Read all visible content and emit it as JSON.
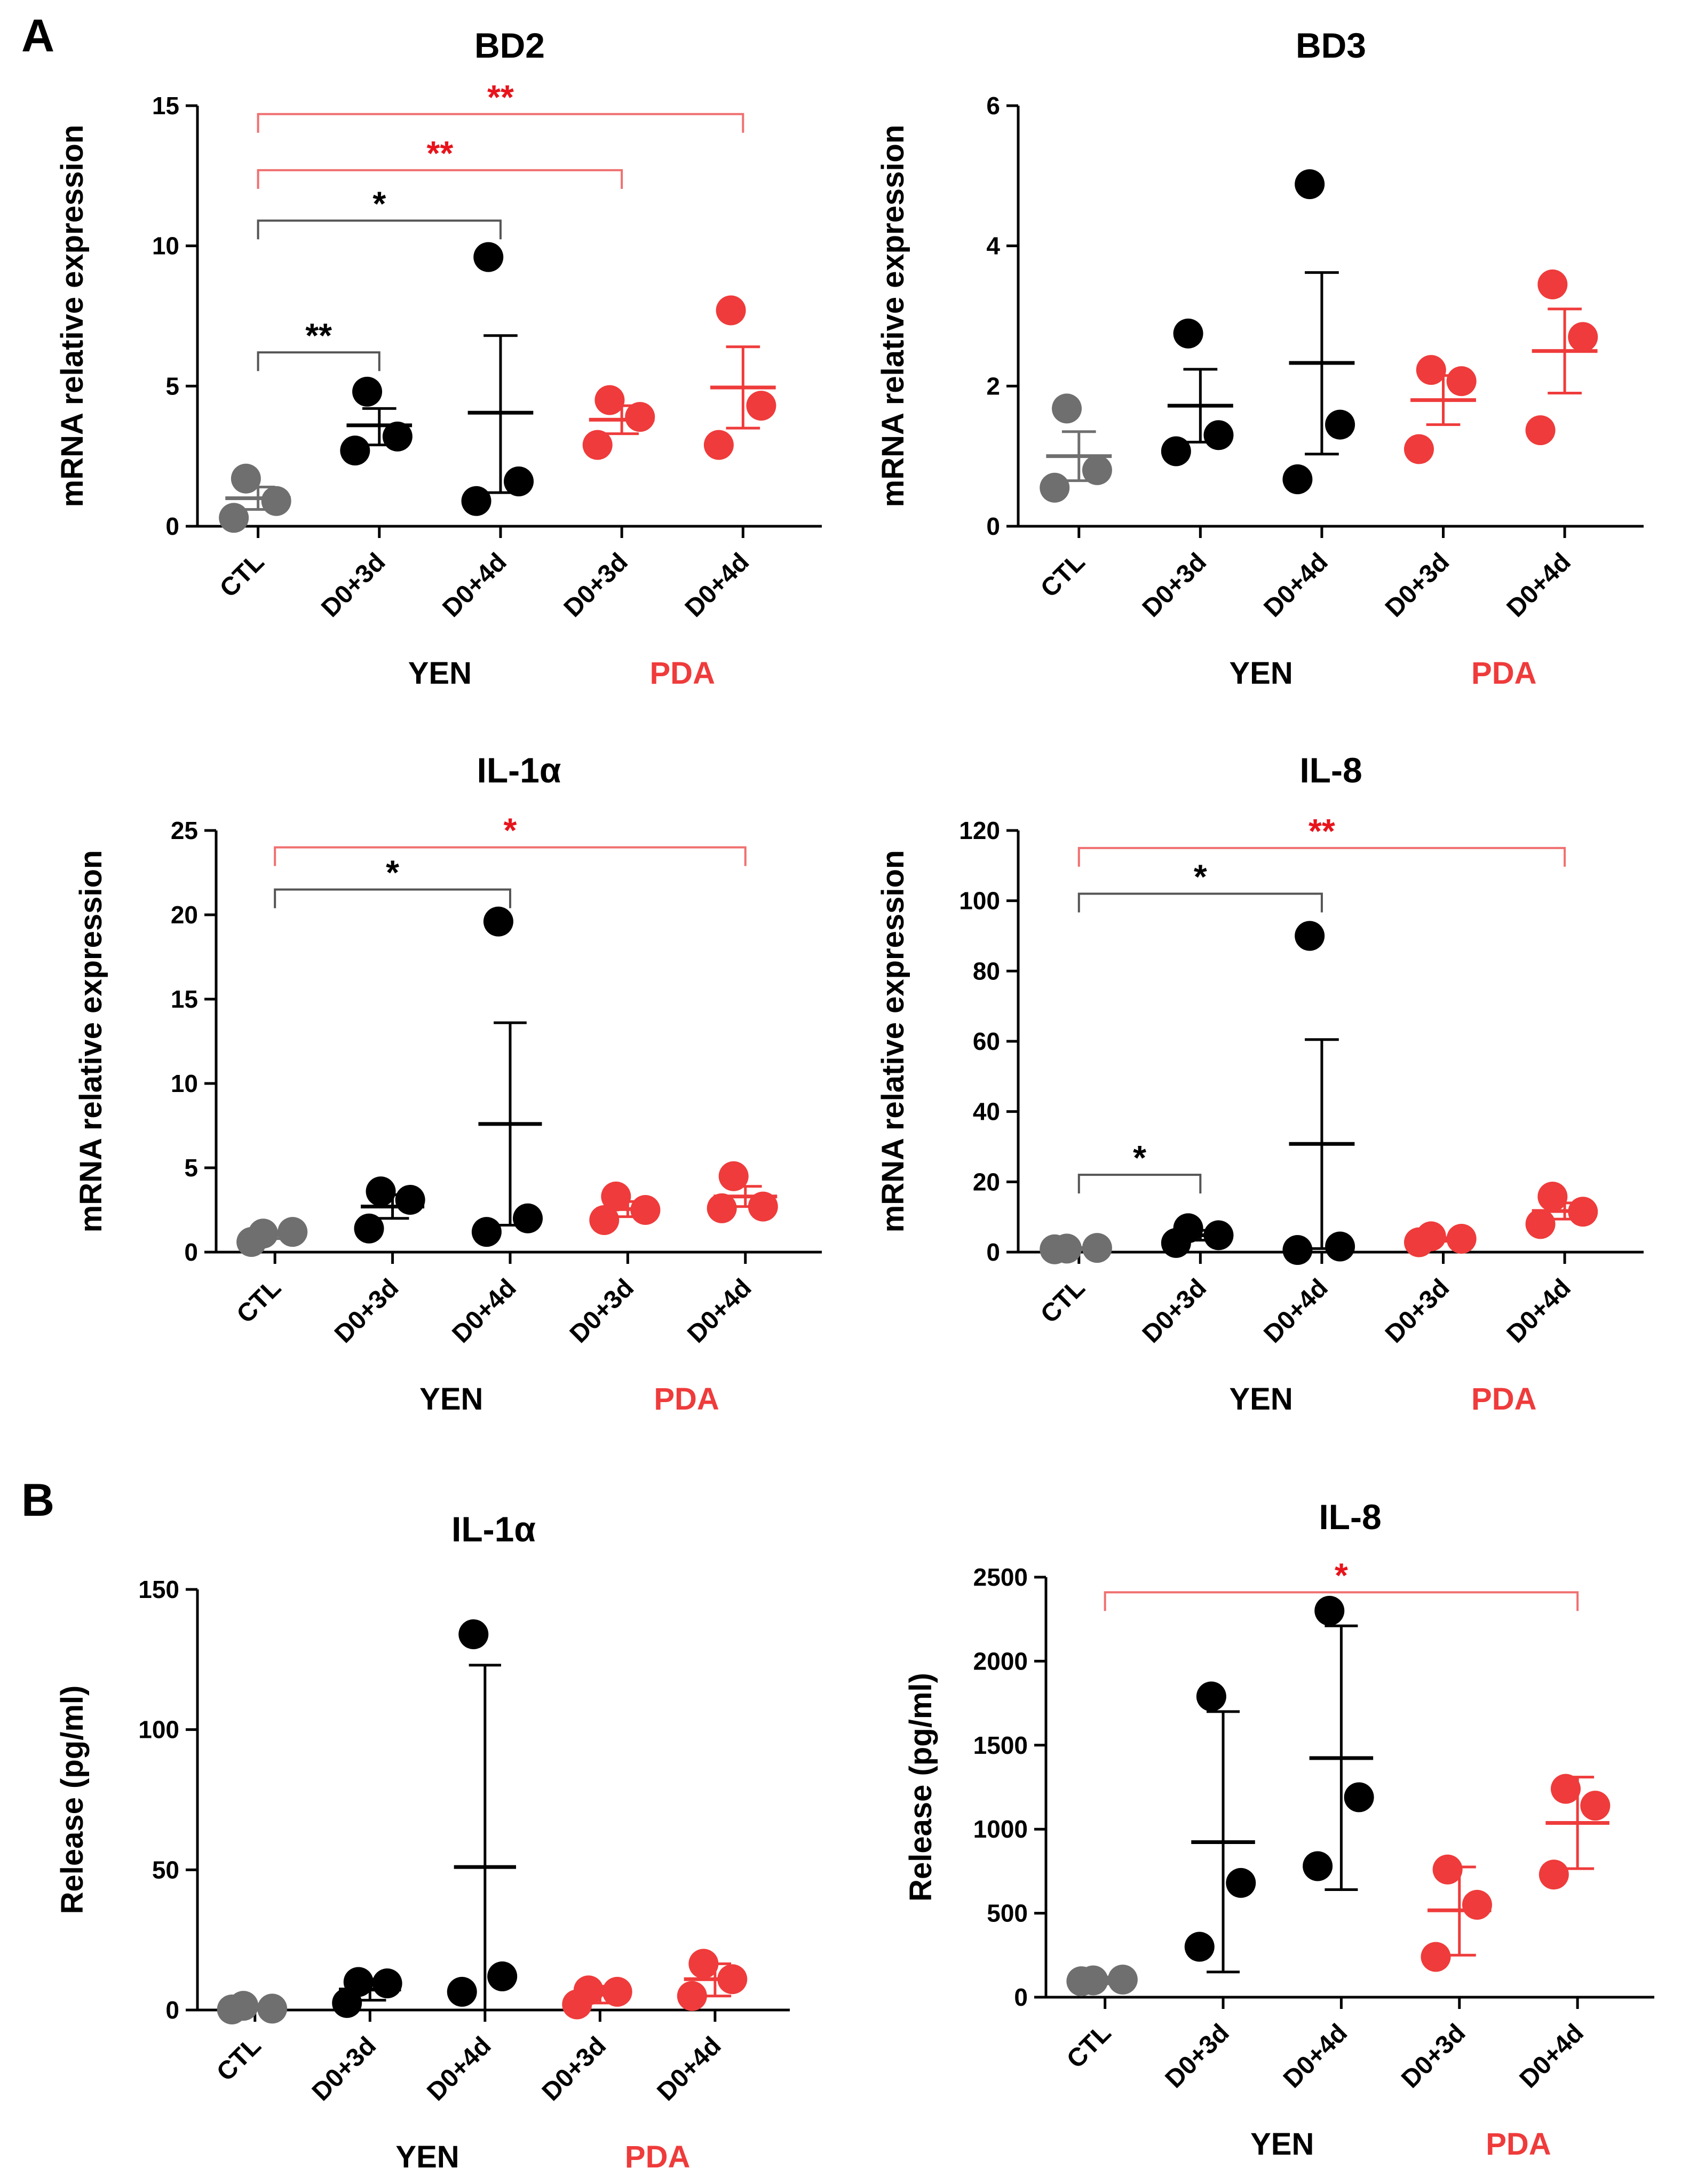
{
  "panel_labels": [
    "A",
    "B"
  ],
  "colors": {
    "ctl": "#6f6f6f",
    "yen": "#000000",
    "pda": "#ef3b3b",
    "sig_red": "#e8141c",
    "bracket_red": "#f07070"
  },
  "chart_data": [
    {
      "type": "scatter",
      "title": "BD2",
      "ylabel": "mRNA relative expression",
      "ylim": [
        0,
        15
      ],
      "yticks": [
        "0",
        "5",
        "10",
        "15"
      ],
      "categories": [
        "CTL",
        "D0+3d",
        "D0+4d",
        "D0+3d",
        "D0+4d"
      ],
      "groups": [
        {
          "label": "YEN",
          "color": "#000000"
        },
        {
          "label": "PDA",
          "color": "#ef3b3b"
        }
      ],
      "series": [
        {
          "name": "CTL",
          "color": "#6f6f6f",
          "points": [
            1.7,
            0.3,
            0.9
          ],
          "mean": 1.0,
          "err": [
            0.6,
            1.4
          ]
        },
        {
          "name": "YEN D0+3d",
          "color": "#000000",
          "points": [
            4.8,
            2.7,
            3.2
          ],
          "mean": 3.6,
          "err": [
            2.9,
            4.2
          ]
        },
        {
          "name": "YEN D0+4d",
          "color": "#000000",
          "points": [
            9.6,
            0.9,
            1.6
          ],
          "mean": 4.05,
          "err": [
            1.2,
            6.8
          ]
        },
        {
          "name": "PDA D0+3d",
          "color": "#ef3b3b",
          "points": [
            4.5,
            2.9,
            3.9
          ],
          "mean": 3.8,
          "err": [
            3.3,
            4.3
          ]
        },
        {
          "name": "PDA D0+4d",
          "color": "#ef3b3b",
          "points": [
            7.7,
            2.9,
            4.3
          ],
          "mean": 4.95,
          "err": [
            3.5,
            6.4
          ]
        }
      ],
      "significance": [
        {
          "from": 0,
          "to": 1,
          "label": "**",
          "y": 6.2,
          "color": "#000000"
        },
        {
          "from": 0,
          "to": 2,
          "label": "*",
          "y": 10.9,
          "color": "#000000"
        },
        {
          "from": 0,
          "to": 3,
          "label": "**",
          "y": 12.7,
          "color": "#e8141c"
        },
        {
          "from": 0,
          "to": 4,
          "label": "**",
          "y": 14.7,
          "color": "#e8141c"
        }
      ]
    },
    {
      "type": "scatter",
      "title": "BD3",
      "ylabel": "mRNA relative expression",
      "ylim": [
        0,
        6
      ],
      "yticks": [
        "0",
        "2",
        "4",
        "6"
      ],
      "categories": [
        "CTL",
        "D0+3d",
        "D0+4d",
        "D0+3d",
        "D0+4d"
      ],
      "groups": [
        {
          "label": "YEN",
          "color": "#000000"
        },
        {
          "label": "PDA",
          "color": "#ef3b3b"
        }
      ],
      "series": [
        {
          "name": "CTL",
          "color": "#6f6f6f",
          "points": [
            1.68,
            0.55,
            0.8
          ],
          "mean": 1.0,
          "err": [
            0.65,
            1.35
          ]
        },
        {
          "name": "YEN D0+3d",
          "color": "#000000",
          "points": [
            2.75,
            1.07,
            1.3
          ],
          "mean": 1.72,
          "err": [
            1.2,
            2.24
          ]
        },
        {
          "name": "YEN D0+4d",
          "color": "#000000",
          "points": [
            4.88,
            0.67,
            1.45
          ],
          "mean": 2.33,
          "err": [
            1.03,
            3.62
          ]
        },
        {
          "name": "PDA D0+3d",
          "color": "#ef3b3b",
          "points": [
            2.23,
            1.1,
            2.07
          ],
          "mean": 1.8,
          "err": [
            1.45,
            2.15
          ]
        },
        {
          "name": "PDA D0+4d",
          "color": "#ef3b3b",
          "points": [
            3.45,
            1.37,
            2.7
          ],
          "mean": 2.5,
          "err": [
            1.9,
            3.1
          ]
        }
      ],
      "significance": []
    },
    {
      "type": "scatter",
      "title": "IL-1α",
      "ylabel": "mRNA relative expression",
      "ylim": [
        0,
        25
      ],
      "yticks": [
        "0",
        "5",
        "10",
        "15",
        "20",
        "25"
      ],
      "categories": [
        "CTL",
        "D0+3d",
        "D0+4d",
        "D0+3d",
        "D0+4d"
      ],
      "groups": [
        {
          "label": "YEN",
          "color": "#000000"
        },
        {
          "label": "PDA",
          "color": "#ef3b3b"
        }
      ],
      "series": [
        {
          "name": "CTL",
          "color": "#6f6f6f",
          "points": [
            1.1,
            0.6,
            1.2
          ],
          "mean": 1.0,
          "err": [
            0.8,
            1.2
          ]
        },
        {
          "name": "YEN D0+3d",
          "color": "#000000",
          "points": [
            3.6,
            1.4,
            3.1
          ],
          "mean": 2.7,
          "err": [
            2.0,
            3.4
          ]
        },
        {
          "name": "YEN D0+4d",
          "color": "#000000",
          "points": [
            19.6,
            1.2,
            2.0
          ],
          "mean": 7.6,
          "err": [
            1.6,
            13.6
          ]
        },
        {
          "name": "PDA D0+3d",
          "color": "#ef3b3b",
          "points": [
            3.3,
            1.9,
            2.5
          ],
          "mean": 2.55,
          "err": [
            2.1,
            3.0
          ]
        },
        {
          "name": "PDA D0+4d",
          "color": "#ef3b3b",
          "points": [
            4.5,
            2.6,
            2.7
          ],
          "mean": 3.3,
          "err": [
            2.7,
            3.9
          ]
        }
      ],
      "significance": [
        {
          "from": 0,
          "to": 2,
          "label": "*",
          "y": 21.5,
          "color": "#000000"
        },
        {
          "from": 0,
          "to": 4,
          "label": "*",
          "y": 24.0,
          "color": "#e8141c"
        }
      ]
    },
    {
      "type": "scatter",
      "title": "IL-8",
      "ylabel": "mRNA relative expression",
      "ylim": [
        0,
        120
      ],
      "yticks": [
        "0",
        "20",
        "40",
        "60",
        "80",
        "100",
        "120"
      ],
      "categories": [
        "CTL",
        "D0+3d",
        "D0+4d",
        "D0+3d",
        "D0+4d"
      ],
      "groups": [
        {
          "label": "YEN",
          "color": "#000000"
        },
        {
          "label": "PDA",
          "color": "#ef3b3b"
        }
      ],
      "series": [
        {
          "name": "CTL",
          "color": "#6f6f6f",
          "points": [
            1.0,
            0.8,
            1.2
          ],
          "mean": 1.0,
          "err": [
            0.7,
            1.3
          ]
        },
        {
          "name": "YEN D0+3d",
          "color": "#000000",
          "points": [
            6.8,
            2.6,
            4.8
          ],
          "mean": 4.8,
          "err": [
            3.4,
            6.2
          ]
        },
        {
          "name": "YEN D0+4d",
          "color": "#000000",
          "points": [
            90.0,
            0.6,
            1.6
          ],
          "mean": 30.8,
          "err": [
            1.0,
            60.5
          ]
        },
        {
          "name": "PDA D0+3d",
          "color": "#ef3b3b",
          "points": [
            4.5,
            2.8,
            3.8
          ],
          "mean": 3.6,
          "err": [
            3.1,
            4.1
          ]
        },
        {
          "name": "PDA D0+4d",
          "color": "#ef3b3b",
          "points": [
            15.8,
            8.0,
            11.5
          ],
          "mean": 11.7,
          "err": [
            9.4,
            14.0
          ]
        }
      ],
      "significance": [
        {
          "from": 0,
          "to": 1,
          "label": "*",
          "y": 22.0,
          "color": "#000000"
        },
        {
          "from": 0,
          "to": 2,
          "label": "*",
          "y": 102.0,
          "color": "#000000"
        },
        {
          "from": 0,
          "to": 4,
          "label": "**",
          "y": 115.0,
          "color": "#e8141c"
        }
      ]
    },
    {
      "type": "scatter",
      "title": "IL-1α",
      "ylabel": "Release (pg/ml)",
      "ylim": [
        0,
        150
      ],
      "yticks": [
        "0",
        "50",
        "100",
        "150"
      ],
      "categories": [
        "CTL",
        "D0+3d",
        "D0+4d",
        "D0+3d",
        "D0+4d"
      ],
      "groups": [
        {
          "label": "YEN",
          "color": "#000000"
        },
        {
          "label": "PDA",
          "color": "#ef3b3b"
        }
      ],
      "series": [
        {
          "name": "CTL",
          "color": "#6f6f6f",
          "points": [
            1.5,
            0.2,
            0.5
          ],
          "mean": 1.0,
          "err": [
            0.0,
            2.0
          ]
        },
        {
          "name": "YEN D0+3d",
          "color": "#000000",
          "points": [
            10.0,
            2.5,
            9.5
          ],
          "mean": 7.3,
          "err": [
            3.5,
            11.0
          ]
        },
        {
          "name": "YEN D0+4d",
          "color": "#000000",
          "points": [
            134.0,
            6.5,
            12.0
          ],
          "mean": 51.0,
          "err": [
            0.0,
            123.0
          ]
        },
        {
          "name": "PDA D0+3d",
          "color": "#ef3b3b",
          "points": [
            7.0,
            2.0,
            6.5
          ],
          "mean": 5.5,
          "err": [
            2.5,
            8.5
          ]
        },
        {
          "name": "PDA D0+4d",
          "color": "#ef3b3b",
          "points": [
            16.5,
            5.0,
            11.0
          ],
          "mean": 11.0,
          "err": [
            5.0,
            16.5
          ]
        }
      ],
      "significance": []
    },
    {
      "type": "scatter",
      "title": "IL-8",
      "ylabel": "Release (pg/ml)",
      "ylim": [
        0,
        2500
      ],
      "yticks": [
        "0",
        "500",
        "1000",
        "1500",
        "2000",
        "2500"
      ],
      "categories": [
        "CTL",
        "D0+3d",
        "D0+4d",
        "D0+3d",
        "D0+4d"
      ],
      "groups": [
        {
          "label": "YEN",
          "color": "#000000"
        },
        {
          "label": "PDA",
          "color": "#ef3b3b"
        }
      ],
      "series": [
        {
          "name": "CTL",
          "color": "#6f6f6f",
          "points": [
            100,
            95,
            105
          ],
          "mean": 100,
          "err": [
            80,
            120
          ]
        },
        {
          "name": "YEN D0+3d",
          "color": "#000000",
          "points": [
            1790,
            300,
            680
          ],
          "mean": 923,
          "err": [
            150,
            1700
          ]
        },
        {
          "name": "YEN D0+4d",
          "color": "#000000",
          "points": [
            2300,
            780,
            1190
          ],
          "mean": 1423,
          "err": [
            640,
            2210
          ]
        },
        {
          "name": "PDA D0+3d",
          "color": "#ef3b3b",
          "points": [
            760,
            240,
            550
          ],
          "mean": 517,
          "err": [
            250,
            775
          ]
        },
        {
          "name": "PDA D0+4d",
          "color": "#ef3b3b",
          "points": [
            1240,
            730,
            1140
          ],
          "mean": 1037,
          "err": [
            765,
            1310
          ]
        }
      ],
      "significance": [
        {
          "from": 0,
          "to": 4,
          "label": "*",
          "y": 2410,
          "color": "#e8141c"
        }
      ]
    }
  ]
}
